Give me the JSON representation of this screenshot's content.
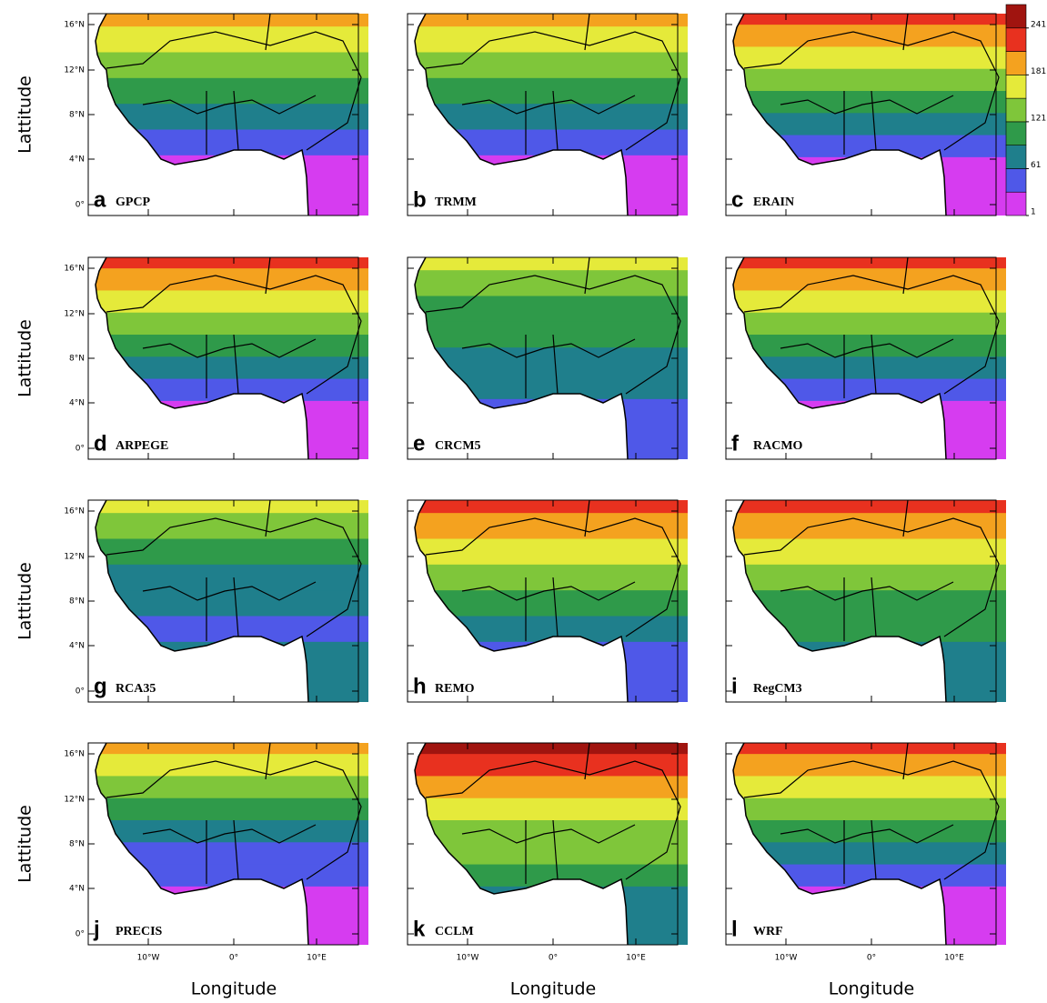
{
  "axis_labels": {
    "y": "Lattitude",
    "x": "Longitude"
  },
  "lat_labels": [
    "16°N",
    "12°N",
    "8°N",
    "4°N",
    "0°"
  ],
  "lon_labels": [
    "10°W",
    "0°",
    "10°E"
  ],
  "panels": [
    {
      "letter": "a",
      "name": "GPCP"
    },
    {
      "letter": "b",
      "name": "TRMM"
    },
    {
      "letter": "c",
      "name": "ERAIN"
    },
    {
      "letter": "d",
      "name": "ARPEGE"
    },
    {
      "letter": "e",
      "name": "CRCM5"
    },
    {
      "letter": "f",
      "name": "RACMO"
    },
    {
      "letter": "g",
      "name": "RCA35"
    },
    {
      "letter": "h",
      "name": "REMO"
    },
    {
      "letter": "i",
      "name": "RegCM3"
    },
    {
      "letter": "j",
      "name": "PRECIS"
    },
    {
      "letter": "k",
      "name": "CCLM"
    },
    {
      "letter": "l",
      "name": "WRF"
    }
  ],
  "colorbar": {
    "ticks": [
      1,
      61,
      121,
      181,
      241
    ],
    "colors": [
      "#d63cf0",
      "#4f58e8",
      "#1f7f8c",
      "#2f9a4a",
      "#7fc63a",
      "#e5ea3a",
      "#f4a21f",
      "#e8311f",
      "#a0140f"
    ]
  }
}
